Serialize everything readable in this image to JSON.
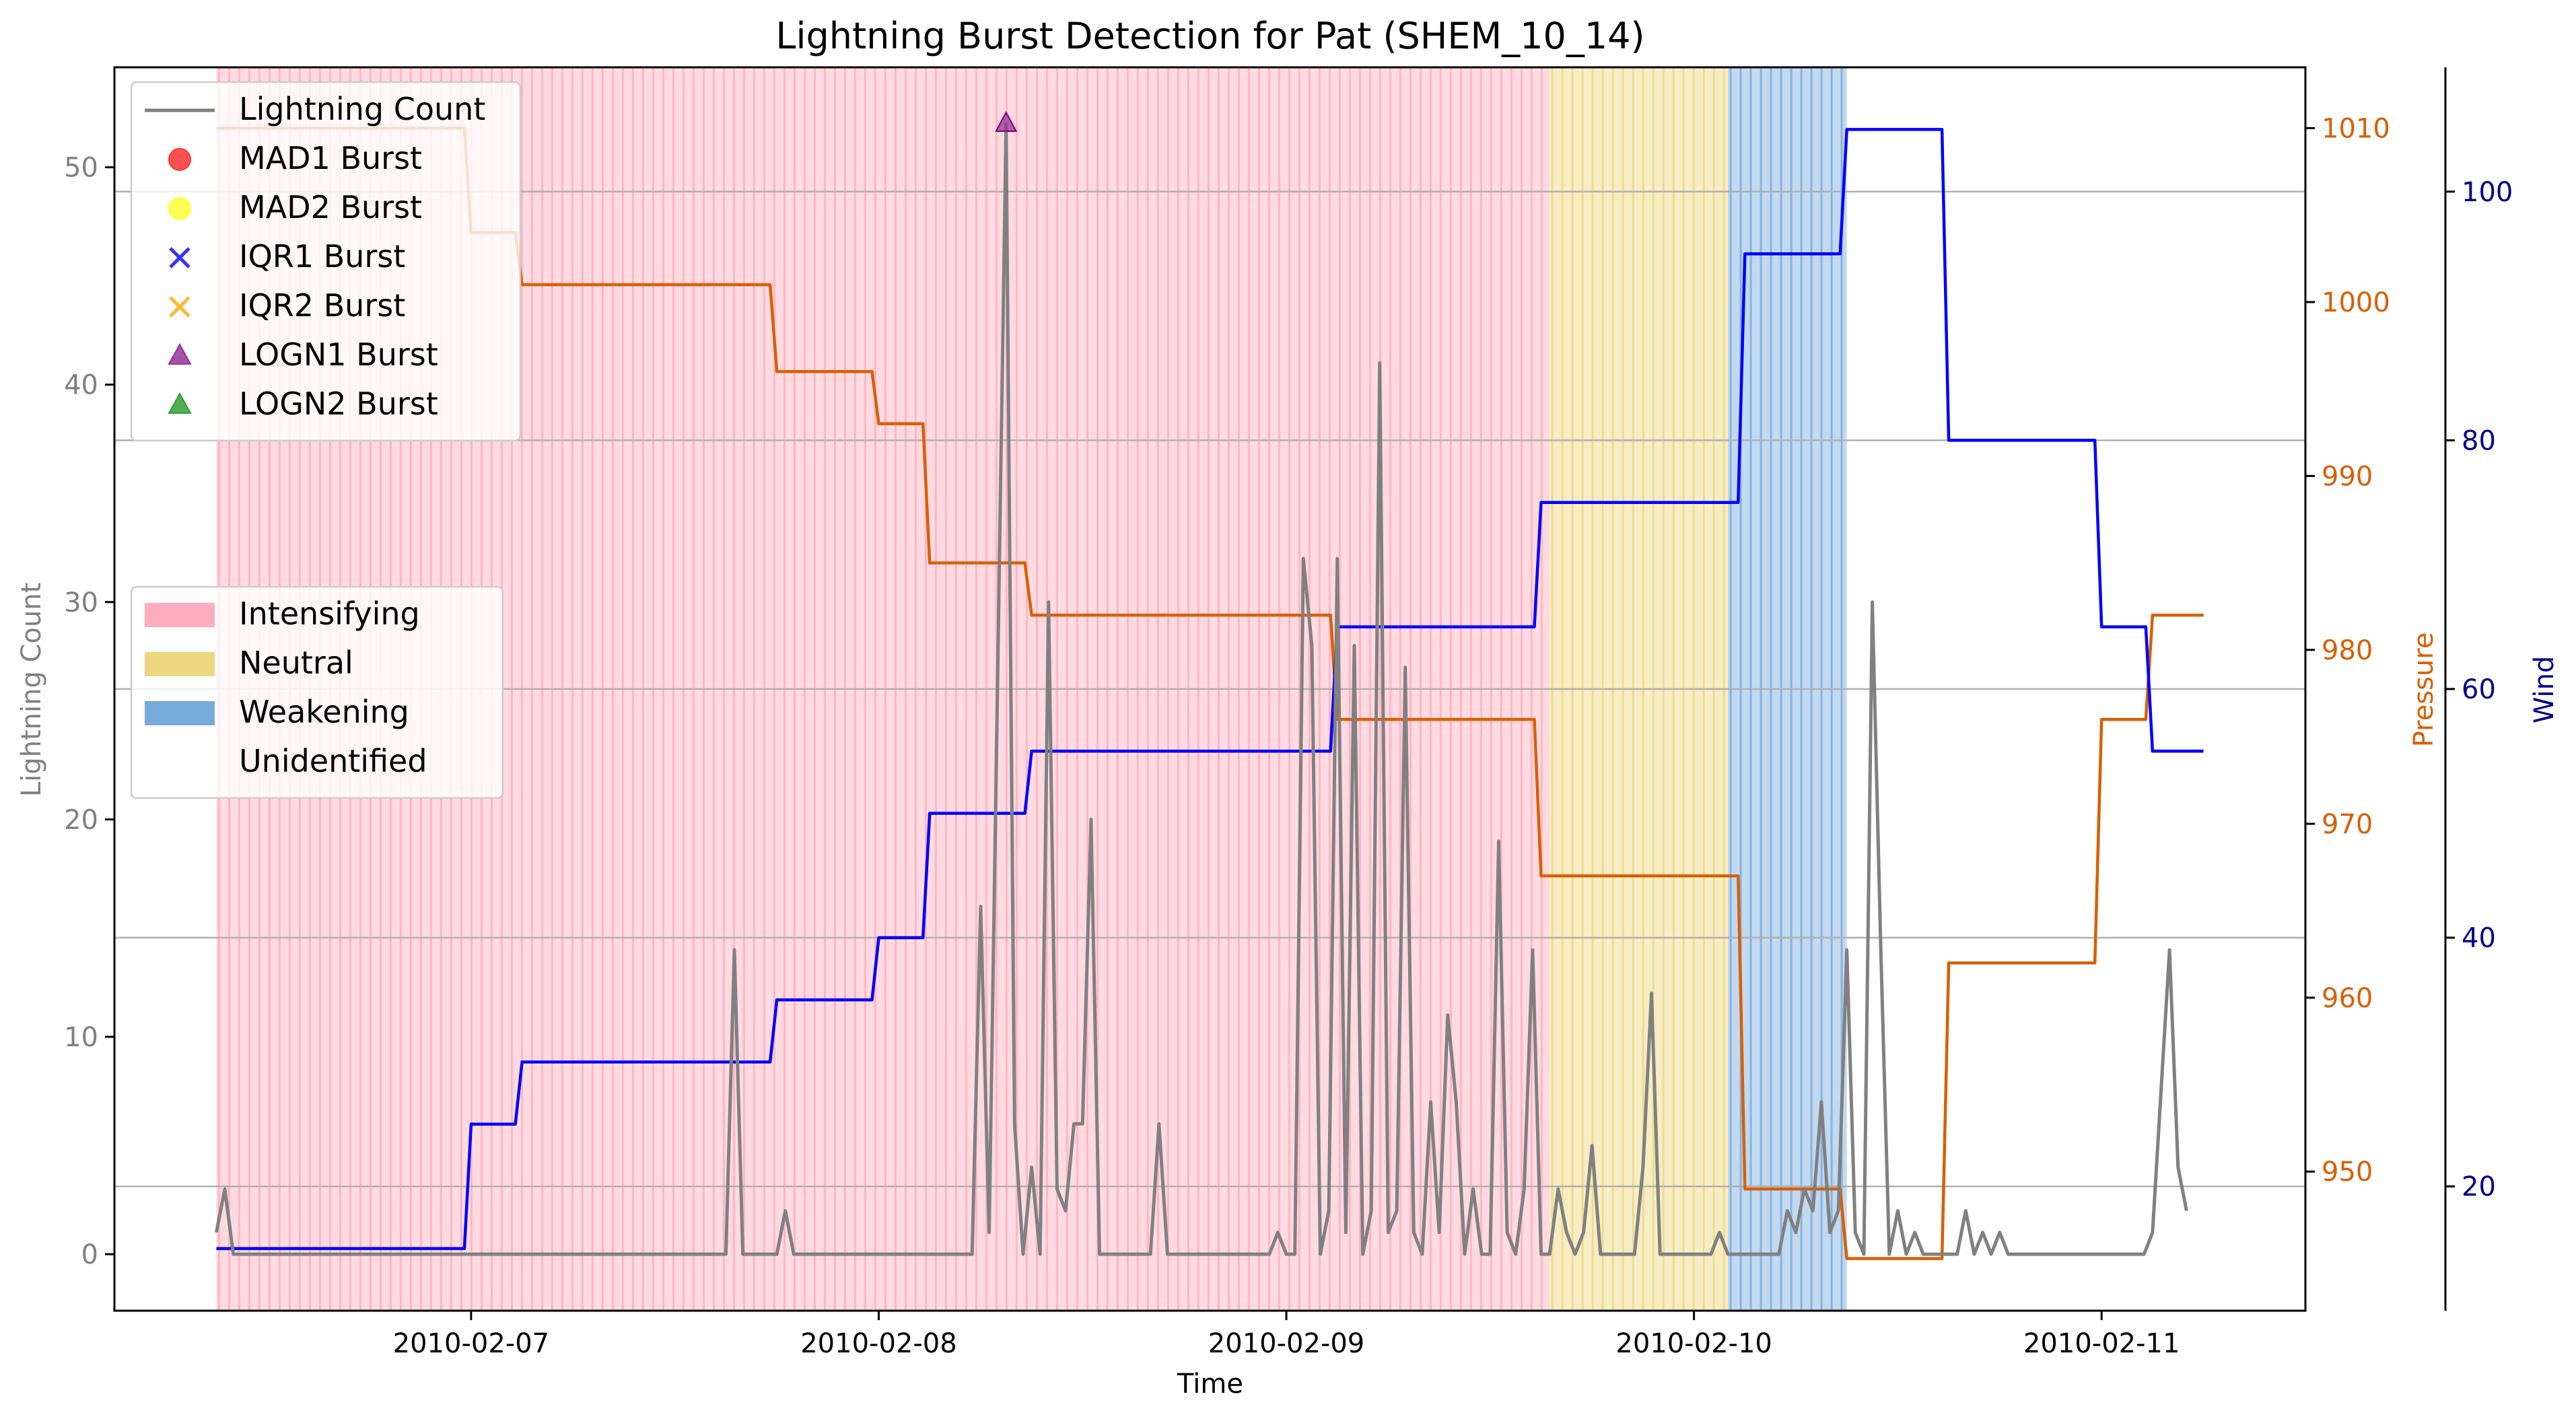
{
  "chart_data": {
    "type": "line",
    "title": "Lightning Burst Detection for Pat (SHEM_10_14)",
    "xlabel": "Time",
    "ylabel_left": "Lightning Count",
    "ylabel_pressure": "Pressure",
    "ylabel_wind": "Wind",
    "x_ticks": [
      "2010-02-07",
      "2010-02-08",
      "2010-02-09",
      "2010-02-10",
      "2010-02-11"
    ],
    "x_start": "2010-02-06 09:00",
    "x_end": "2010-02-11 06:00",
    "xlim": [
      "2010-02-06 03:00",
      "2010-02-11 12:00"
    ],
    "lightning": {
      "name": "Lightning Count",
      "ylim": [
        -2.6,
        54.6
      ],
      "yticks": [
        0,
        10,
        20,
        30,
        40,
        50
      ],
      "points": [
        [
          "2010-02-06 09:00",
          1
        ],
        [
          "2010-02-06 09:30",
          3
        ],
        [
          "2010-02-06 10:00",
          0
        ],
        [
          "2010-02-06 12:00",
          0
        ],
        [
          "2010-02-06 18:00",
          0
        ],
        [
          "2010-02-07 00:00",
          0
        ],
        [
          "2010-02-07 06:00",
          0
        ],
        [
          "2010-02-07 15:00",
          0
        ],
        [
          "2010-02-07 15:30",
          14
        ],
        [
          "2010-02-07 16:00",
          0
        ],
        [
          "2010-02-07 18:00",
          0
        ],
        [
          "2010-02-07 18:30",
          2
        ],
        [
          "2010-02-07 19:00",
          0
        ],
        [
          "2010-02-08 05:30",
          0
        ],
        [
          "2010-02-08 06:00",
          16
        ],
        [
          "2010-02-08 06:30",
          1
        ],
        [
          "2010-02-08 07:30",
          52
        ],
        [
          "2010-02-08 08:00",
          6
        ],
        [
          "2010-02-08 08:30",
          0
        ],
        [
          "2010-02-08 09:00",
          4
        ],
        [
          "2010-02-08 09:30",
          0
        ],
        [
          "2010-02-08 10:00",
          30
        ],
        [
          "2010-02-08 10:30",
          3
        ],
        [
          "2010-02-08 11:00",
          2
        ],
        [
          "2010-02-08 11:30",
          6
        ],
        [
          "2010-02-08 12:00",
          6
        ],
        [
          "2010-02-08 12:30",
          20
        ],
        [
          "2010-02-08 13:00",
          0
        ],
        [
          "2010-02-08 16:00",
          0
        ],
        [
          "2010-02-08 16:30",
          6
        ],
        [
          "2010-02-08 17:00",
          0
        ],
        [
          "2010-02-08 23:00",
          0
        ],
        [
          "2010-02-08 23:30",
          1
        ],
        [
          "2010-02-09 00:00",
          0
        ],
        [
          "2010-02-09 00:30",
          0
        ],
        [
          "2010-02-09 01:00",
          32
        ],
        [
          "2010-02-09 01:30",
          28
        ],
        [
          "2010-02-09 02:00",
          0
        ],
        [
          "2010-02-09 02:30",
          2
        ],
        [
          "2010-02-09 03:00",
          32
        ],
        [
          "2010-02-09 03:30",
          1
        ],
        [
          "2010-02-09 04:00",
          28
        ],
        [
          "2010-02-09 04:30",
          0
        ],
        [
          "2010-02-09 05:00",
          2
        ],
        [
          "2010-02-09 05:30",
          41
        ],
        [
          "2010-02-09 06:00",
          1
        ],
        [
          "2010-02-09 06:30",
          2
        ],
        [
          "2010-02-09 07:00",
          27
        ],
        [
          "2010-02-09 07:30",
          1
        ],
        [
          "2010-02-09 08:00",
          0
        ],
        [
          "2010-02-09 08:30",
          7
        ],
        [
          "2010-02-09 09:00",
          1
        ],
        [
          "2010-02-09 09:30",
          11
        ],
        [
          "2010-02-09 10:00",
          7
        ],
        [
          "2010-02-09 10:30",
          0
        ],
        [
          "2010-02-09 11:00",
          3
        ],
        [
          "2010-02-09 11:30",
          0
        ],
        [
          "2010-02-09 12:00",
          0
        ],
        [
          "2010-02-09 12:30",
          19
        ],
        [
          "2010-02-09 13:00",
          1
        ],
        [
          "2010-02-09 13:30",
          0
        ],
        [
          "2010-02-09 14:00",
          3
        ],
        [
          "2010-02-09 14:30",
          14
        ],
        [
          "2010-02-09 15:00",
          0
        ],
        [
          "2010-02-09 15:30",
          0
        ],
        [
          "2010-02-09 16:00",
          3
        ],
        [
          "2010-02-09 16:30",
          1
        ],
        [
          "2010-02-09 17:00",
          0
        ],
        [
          "2010-02-09 17:30",
          1
        ],
        [
          "2010-02-09 18:00",
          5
        ],
        [
          "2010-02-09 18:30",
          0
        ],
        [
          "2010-02-09 20:30",
          0
        ],
        [
          "2010-02-09 21:00",
          4
        ],
        [
          "2010-02-09 21:30",
          12
        ],
        [
          "2010-02-09 22:00",
          0
        ],
        [
          "2010-02-10 01:00",
          0
        ],
        [
          "2010-02-10 01:30",
          1
        ],
        [
          "2010-02-10 02:00",
          0
        ],
        [
          "2010-02-10 05:00",
          0
        ],
        [
          "2010-02-10 05:30",
          2
        ],
        [
          "2010-02-10 06:00",
          1
        ],
        [
          "2010-02-10 06:30",
          3
        ],
        [
          "2010-02-10 07:00",
          2
        ],
        [
          "2010-02-10 07:30",
          7
        ],
        [
          "2010-02-10 08:00",
          1
        ],
        [
          "2010-02-10 08:30",
          2
        ],
        [
          "2010-02-10 09:00",
          14
        ],
        [
          "2010-02-10 09:30",
          1
        ],
        [
          "2010-02-10 10:00",
          0
        ],
        [
          "2010-02-10 10:30",
          30
        ],
        [
          "2010-02-10 11:00",
          14
        ],
        [
          "2010-02-10 11:30",
          0
        ],
        [
          "2010-02-10 12:00",
          2
        ],
        [
          "2010-02-10 12:30",
          0
        ],
        [
          "2010-02-10 13:00",
          1
        ],
        [
          "2010-02-10 13:30",
          0
        ],
        [
          "2010-02-10 15:30",
          0
        ],
        [
          "2010-02-10 16:00",
          2
        ],
        [
          "2010-02-10 16:30",
          0
        ],
        [
          "2010-02-10 17:00",
          1
        ],
        [
          "2010-02-10 17:30",
          0
        ],
        [
          "2010-02-10 18:00",
          1
        ],
        [
          "2010-02-10 18:30",
          0
        ],
        [
          "2010-02-11 02:30",
          0
        ],
        [
          "2010-02-11 03:00",
          1
        ],
        [
          "2010-02-11 04:00",
          14
        ],
        [
          "2010-02-11 04:30",
          4
        ],
        [
          "2010-02-11 05:00",
          2
        ]
      ]
    },
    "pressure": {
      "name": "Pressure",
      "ylim": [
        942,
        1013.5
      ],
      "yticks": [
        950,
        960,
        970,
        980,
        990,
        1000,
        1010
      ],
      "steps": [
        [
          "2010-02-06 09:00",
          1010
        ],
        [
          "2010-02-07 00:00",
          1004
        ],
        [
          "2010-02-07 03:00",
          1001
        ],
        [
          "2010-02-07 18:00",
          996
        ],
        [
          "2010-02-08 00:00",
          993
        ],
        [
          "2010-02-08 03:00",
          985
        ],
        [
          "2010-02-08 09:00",
          982
        ],
        [
          "2010-02-09 03:00",
          976
        ],
        [
          "2010-02-09 15:00",
          967
        ],
        [
          "2010-02-10 03:00",
          949
        ],
        [
          "2010-02-10 09:00",
          945
        ],
        [
          "2010-02-10 15:00",
          962
        ],
        [
          "2010-02-11 00:00",
          976
        ],
        [
          "2010-02-11 03:00",
          982
        ]
      ],
      "end": "2010-02-11 06:00"
    },
    "wind": {
      "name": "Wind",
      "ylim": [
        10,
        110
      ],
      "yticks": [
        20,
        40,
        60,
        80,
        100
      ],
      "steps": [
        [
          "2010-02-06 09:00",
          15
        ],
        [
          "2010-02-07 00:00",
          25
        ],
        [
          "2010-02-07 03:00",
          30
        ],
        [
          "2010-02-07 18:00",
          35
        ],
        [
          "2010-02-08 00:00",
          40
        ],
        [
          "2010-02-08 03:00",
          50
        ],
        [
          "2010-02-08 09:00",
          55
        ],
        [
          "2010-02-09 03:00",
          65
        ],
        [
          "2010-02-09 15:00",
          75
        ],
        [
          "2010-02-10 03:00",
          95
        ],
        [
          "2010-02-10 09:00",
          105
        ],
        [
          "2010-02-10 15:00",
          80
        ],
        [
          "2010-02-11 00:00",
          65
        ],
        [
          "2010-02-11 03:00",
          55
        ]
      ],
      "end": "2010-02-11 06:00"
    },
    "bursts": [
      {
        "method": "LOGN1 Burst",
        "time": "2010-02-08 07:30",
        "value": 52
      }
    ],
    "phases": [
      {
        "label": "Intensifying",
        "start": "2010-02-06 09:00",
        "end": "2010-02-09 15:30",
        "color": "#ffadbc"
      },
      {
        "label": "Neutral",
        "start": "2010-02-09 15:30",
        "end": "2010-02-10 02:00",
        "color": "#ecd77f"
      },
      {
        "label": "Weakening",
        "start": "2010-02-10 02:00",
        "end": "2010-02-10 09:00",
        "color": "#77aadd"
      }
    ],
    "legend_top": [
      {
        "label": "Lightning Count",
        "marker": "line",
        "color": "#808080"
      },
      {
        "label": "MAD1 Burst",
        "marker": "circle",
        "color": "#ff3333"
      },
      {
        "label": "MAD2 Burst",
        "marker": "circle",
        "color": "#ffff33"
      },
      {
        "label": "IQR1 Burst",
        "marker": "x",
        "color": "#3333ff"
      },
      {
        "label": "IQR2 Burst",
        "marker": "x",
        "color": "#ffb833"
      },
      {
        "label": "LOGN1 Burst",
        "marker": "triangle",
        "color": "#993399"
      },
      {
        "label": "LOGN2 Burst",
        "marker": "triangle",
        "color": "#33a033"
      }
    ],
    "legend_bottom": [
      {
        "label": "Intensifying",
        "color": "#ffadbc"
      },
      {
        "label": "Neutral",
        "color": "#ecd77f"
      },
      {
        "label": "Weakening",
        "color": "#77aadd"
      },
      {
        "label": "Unidentified",
        "color": "#ffffff"
      }
    ],
    "legend_placement": [
      "upper-left",
      "center-left"
    ],
    "grid": "horizontal (wind axis)",
    "colors": {
      "lightning": "#808080",
      "pressure": "#d95f02",
      "wind": "#0000ff",
      "left_axis_text": "#808080",
      "wind_axis_text": "#00008b"
    }
  }
}
